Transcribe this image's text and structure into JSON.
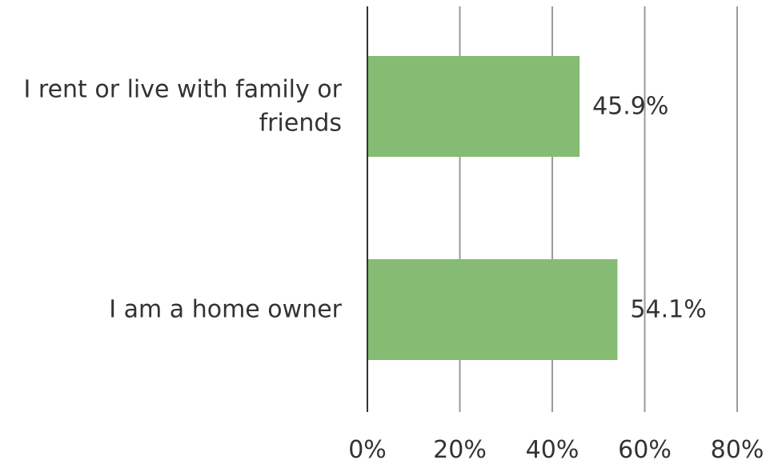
{
  "chart_data": {
    "type": "bar",
    "orientation": "horizontal",
    "categories": [
      [
        "I rent or live with family or",
        "friends"
      ],
      [
        "I am a home owner"
      ]
    ],
    "values": [
      45.9,
      54.1
    ],
    "data_labels": [
      "45.9%",
      "54.1%"
    ],
    "xlim": [
      0,
      80
    ],
    "x_ticks": [
      0,
      20,
      40,
      60,
      80
    ],
    "x_tick_labels": [
      "0%",
      "20%",
      "40%",
      "60%",
      "80%"
    ],
    "grid": "vertical",
    "colors": {
      "bar": "#86bb74",
      "grid": "#9a9a9a",
      "axis": "#333333"
    }
  }
}
